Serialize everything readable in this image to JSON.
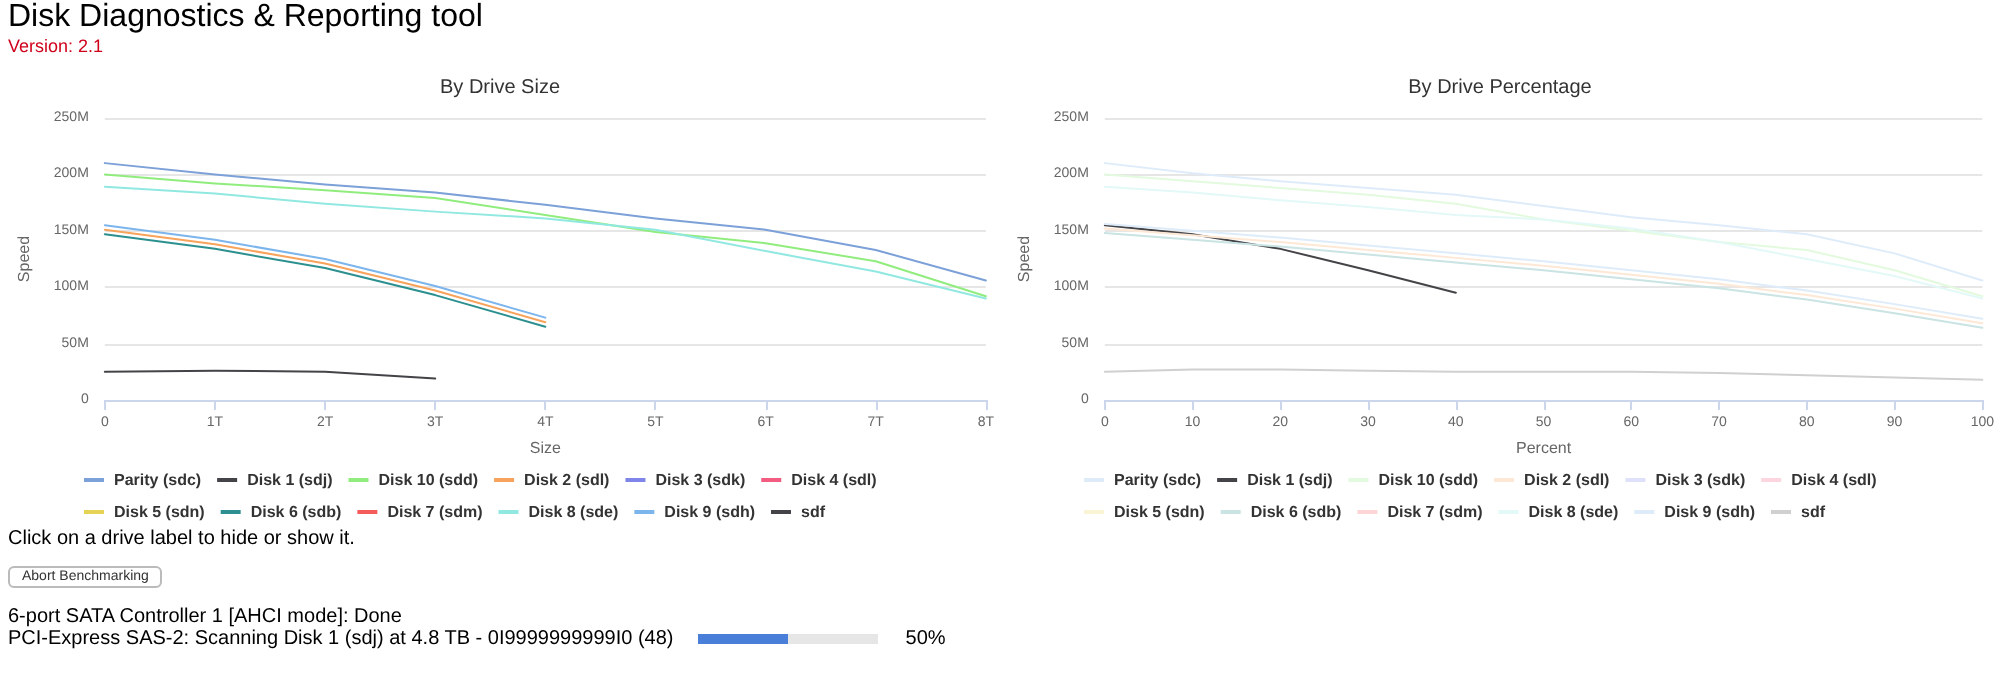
{
  "chart_data": [
    {
      "type": "other",
      "title": "Disk Diagnostics & Reporting tool",
      "subtitle": "Version: 2.1"
    },
    {
      "type": "line",
      "title": "By Drive Size",
      "xlabel": "Size",
      "ylabel": "Speed",
      "x": [
        0,
        1,
        2,
        3,
        4,
        5,
        6,
        7,
        8
      ],
      "xlim": [
        0,
        8
      ],
      "xticks": [
        0,
        {
          "value": 1,
          "label": "1T"
        },
        {
          "value": 2,
          "label": "2T"
        },
        {
          "value": 3,
          "label": "3T"
        },
        {
          "value": 4,
          "label": "4T"
        },
        {
          "value": 5,
          "label": "5T"
        },
        {
          "value": 6,
          "label": "6T"
        },
        {
          "value": 7,
          "label": "7T"
        },
        {
          "value": 8,
          "label": "8T"
        }
      ],
      "ylim": [
        0,
        250
      ],
      "yticks": [
        0,
        {
          "value": 50,
          "label": "50M"
        },
        {
          "value": 100,
          "label": "100M"
        },
        {
          "value": 150,
          "label": "150M"
        },
        {
          "value": 200,
          "label": "200M"
        },
        {
          "value": 250,
          "label": "250M"
        }
      ],
      "grid": "y",
      "legend": "bottom",
      "marker": "none",
      "line_style": "solid",
      "series": [
        {
          "name": "Parity (sdc)",
          "color": "#7ca0d8",
          "values": [
            210,
            200,
            191,
            184,
            173,
            161,
            151,
            133,
            106
          ]
        },
        {
          "name": "Disk 1 (sdj)",
          "color": "#434348",
          "values": [
            null,
            null,
            null,
            null,
            null,
            null,
            null,
            null,
            null
          ]
        },
        {
          "name": "Disk 10 (sdd)",
          "color": "#90ed7d",
          "values": [
            200,
            192,
            186,
            179,
            164,
            149,
            139,
            123,
            92
          ]
        },
        {
          "name": "Disk 2 (sdl)",
          "color": "#f7a35c",
          "values": [
            151,
            138,
            121,
            97,
            69,
            null,
            null,
            null,
            null
          ]
        },
        {
          "name": "Disk 3 (sdk)",
          "color": "#8085e9",
          "values": [
            null,
            null,
            null,
            null,
            null,
            null,
            null,
            null,
            null
          ]
        },
        {
          "name": "Disk 4 (sdl)",
          "color": "#f15c80",
          "values": [
            null,
            null,
            null,
            null,
            null,
            null,
            null,
            null,
            null
          ]
        },
        {
          "name": "Disk 5 (sdn)",
          "color": "#e4d354",
          "values": [
            null,
            null,
            null,
            null,
            null,
            null,
            null,
            null,
            null
          ]
        },
        {
          "name": "Disk 6 (sdb)",
          "color": "#2b908f",
          "values": [
            147,
            134,
            117,
            93,
            65,
            null,
            null,
            null,
            null
          ]
        },
        {
          "name": "Disk 7 (sdm)",
          "color": "#f45b5b",
          "values": [
            null,
            null,
            null,
            null,
            null,
            null,
            null,
            null,
            null
          ]
        },
        {
          "name": "Disk 8 (sde)",
          "color": "#91e8e1",
          "values": [
            189,
            183,
            174,
            167,
            161,
            151,
            132,
            114,
            90
          ]
        },
        {
          "name": "Disk 9 (sdh)",
          "color": "#7cb5ec",
          "values": [
            155,
            142,
            125,
            101,
            73,
            null,
            null,
            null,
            null
          ]
        },
        {
          "name": "sdf",
          "color": "#434348",
          "values": [
            25,
            26,
            25,
            19,
            null,
            null,
            null,
            null,
            null
          ]
        }
      ]
    },
    {
      "type": "line",
      "title": "By Drive Percentage",
      "xlabel": "Percent",
      "ylabel": "Speed",
      "x": [
        0,
        10,
        20,
        30,
        40,
        50,
        60,
        70,
        80,
        90,
        100
      ],
      "xlim": [
        0,
        100
      ],
      "xticks": [
        0,
        10,
        20,
        30,
        40,
        50,
        60,
        70,
        80,
        90,
        100
      ],
      "ylim": [
        0,
        250
      ],
      "yticks": [
        0,
        {
          "value": 50,
          "label": "50M"
        },
        {
          "value": 100,
          "label": "100M"
        },
        {
          "value": 150,
          "label": "150M"
        },
        {
          "value": 200,
          "label": "200M"
        },
        {
          "value": 250,
          "label": "250M"
        }
      ],
      "grid": "y",
      "legend": "bottom",
      "marker": "none",
      "line_style": "solid",
      "series": [
        {
          "name": "Parity (sdc)",
          "color": "#deecfa",
          "values": [
            210,
            201,
            194,
            188,
            182,
            172,
            162,
            155,
            147,
            130,
            106
          ]
        },
        {
          "name": "Disk 1 (sdj)",
          "color": "#434348",
          "values": [
            155,
            147,
            134,
            115,
            95,
            null,
            null,
            null,
            null,
            null,
            null
          ]
        },
        {
          "name": "Disk 10 (sdd)",
          "color": "#e3fade",
          "values": [
            200,
            194,
            188,
            182,
            174,
            160,
            150,
            140,
            133,
            115,
            92
          ]
        },
        {
          "name": "Disk 2 (sdl)",
          "color": "#fde8d6",
          "values": [
            152,
            146,
            140,
            133,
            126,
            119,
            111,
            103,
            93,
            81,
            68
          ]
        },
        {
          "name": "Disk 3 (sdk)",
          "color": "#dfe0f9",
          "values": [
            null,
            null,
            null,
            null,
            null,
            null,
            null,
            null,
            null,
            null,
            null
          ]
        },
        {
          "name": "Disk 4 (sdl)",
          "color": "#fbd6df",
          "values": [
            null,
            null,
            null,
            null,
            null,
            null,
            null,
            null,
            null,
            null,
            null
          ]
        },
        {
          "name": "Disk 5 (sdn)",
          "color": "#f8f4d4",
          "values": [
            null,
            null,
            null,
            null,
            null,
            null,
            null,
            null,
            null,
            null,
            null
          ]
        },
        {
          "name": "Disk 6 (sdb)",
          "color": "#cae3e3",
          "values": [
            148,
            142,
            136,
            129,
            122,
            115,
            107,
            99,
            89,
            77,
            64
          ]
        },
        {
          "name": "Disk 7 (sdm)",
          "color": "#fcd6d6",
          "values": [
            null,
            null,
            null,
            null,
            null,
            null,
            null,
            null,
            null,
            null,
            null
          ]
        },
        {
          "name": "Disk 8 (sde)",
          "color": "#e3f9f7",
          "values": [
            189,
            184,
            177,
            171,
            164,
            160,
            152,
            140,
            125,
            110,
            90
          ]
        },
        {
          "name": "Disk 9 (sdh)",
          "color": "#deecfa",
          "values": [
            156,
            150,
            144,
            137,
            130,
            123,
            115,
            107,
            97,
            85,
            72
          ]
        },
        {
          "name": "sdf",
          "color": "#d0d0d1",
          "values": [
            25,
            27,
            27,
            26,
            25,
            25,
            25,
            24,
            22,
            20,
            18
          ]
        }
      ]
    },
    {
      "type": "other",
      "annotations": [
        "Click on a drive label to hide or show it.",
        "Abort Benchmarking",
        "6-port SATA Controller 1 [AHCI mode]: Done",
        "PCI-Express SAS-2: Scanning Disk 1 (sdj) at 4.8 TB - 0I9999999999I0 (48)"
      ],
      "values": [
        50
      ],
      "value_labels": [
        "50%"
      ]
    }
  ]
}
